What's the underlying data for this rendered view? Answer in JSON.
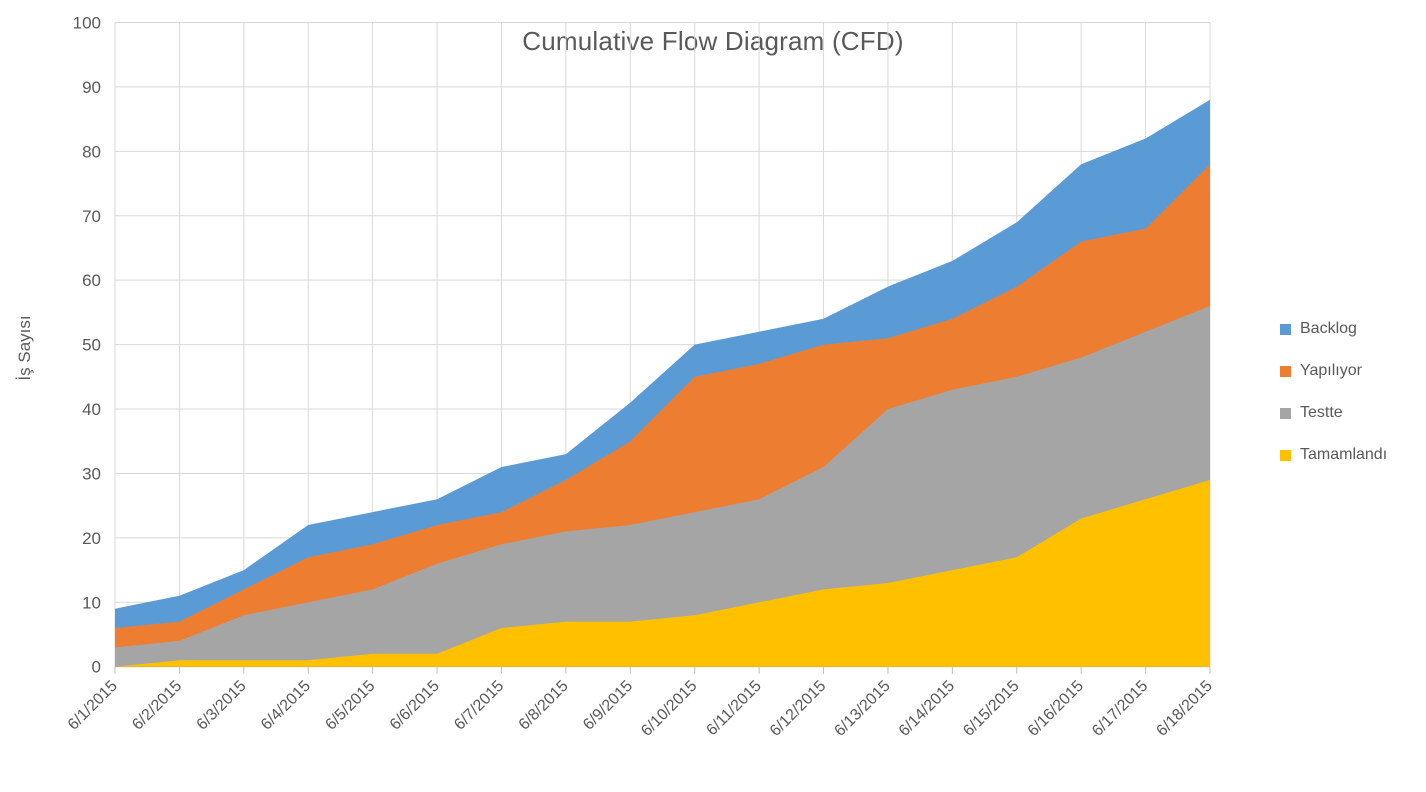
{
  "chart_data": {
    "type": "area",
    "stacked": true,
    "title": "Cumulative Flow Diagram (CFD)",
    "ylabel": "İş Sayısı",
    "xlabel": "",
    "ylim": [
      0,
      100
    ],
    "ytick_step": 10,
    "grid": true,
    "legend_position": "right",
    "categories": [
      "6/1/2015",
      "6/2/2015",
      "6/3/2015",
      "6/4/2015",
      "6/5/2015",
      "6/6/2015",
      "6/7/2015",
      "6/8/2015",
      "6/9/2015",
      "6/10/2015",
      "6/11/2015",
      "6/12/2015",
      "6/13/2015",
      "6/14/2015",
      "6/15/2015",
      "6/16/2015",
      "6/17/2015",
      "6/18/2015"
    ],
    "series": [
      {
        "name": "Tamamlandı",
        "color": "#FFC000",
        "values": [
          0,
          1,
          1,
          1,
          2,
          2,
          6,
          7,
          7,
          8,
          10,
          12,
          13,
          15,
          17,
          23,
          26,
          29
        ]
      },
      {
        "name": "Testte",
        "color": "#A5A5A5",
        "values": [
          3,
          3,
          7,
          9,
          10,
          14,
          13,
          14,
          15,
          16,
          16,
          19,
          27,
          28,
          28,
          25,
          26,
          27
        ]
      },
      {
        "name": "Yapılıyor",
        "color": "#ED7D31",
        "values": [
          3,
          3,
          4,
          7,
          7,
          6,
          5,
          8,
          13,
          21,
          21,
          19,
          11,
          11,
          14,
          18,
          16,
          22
        ]
      },
      {
        "name": "Backlog",
        "color": "#5B9BD5",
        "values": [
          3,
          4,
          3,
          5,
          5,
          4,
          7,
          4,
          6,
          5,
          5,
          4,
          8,
          9,
          10,
          12,
          14,
          10
        ]
      }
    ],
    "legend_order": [
      "Backlog",
      "Yapılıyor",
      "Testte",
      "Tamamlandı"
    ],
    "cumulative_totals": [
      9,
      11,
      15,
      22,
      24,
      26,
      31,
      33,
      41,
      50,
      52,
      54,
      59,
      63,
      69,
      78,
      82,
      88
    ],
    "colors": {
      "grid": "#D9D9D9",
      "tick": "#BFBFBF",
      "axis_text": "#595959",
      "title_text": "#595959"
    }
  }
}
